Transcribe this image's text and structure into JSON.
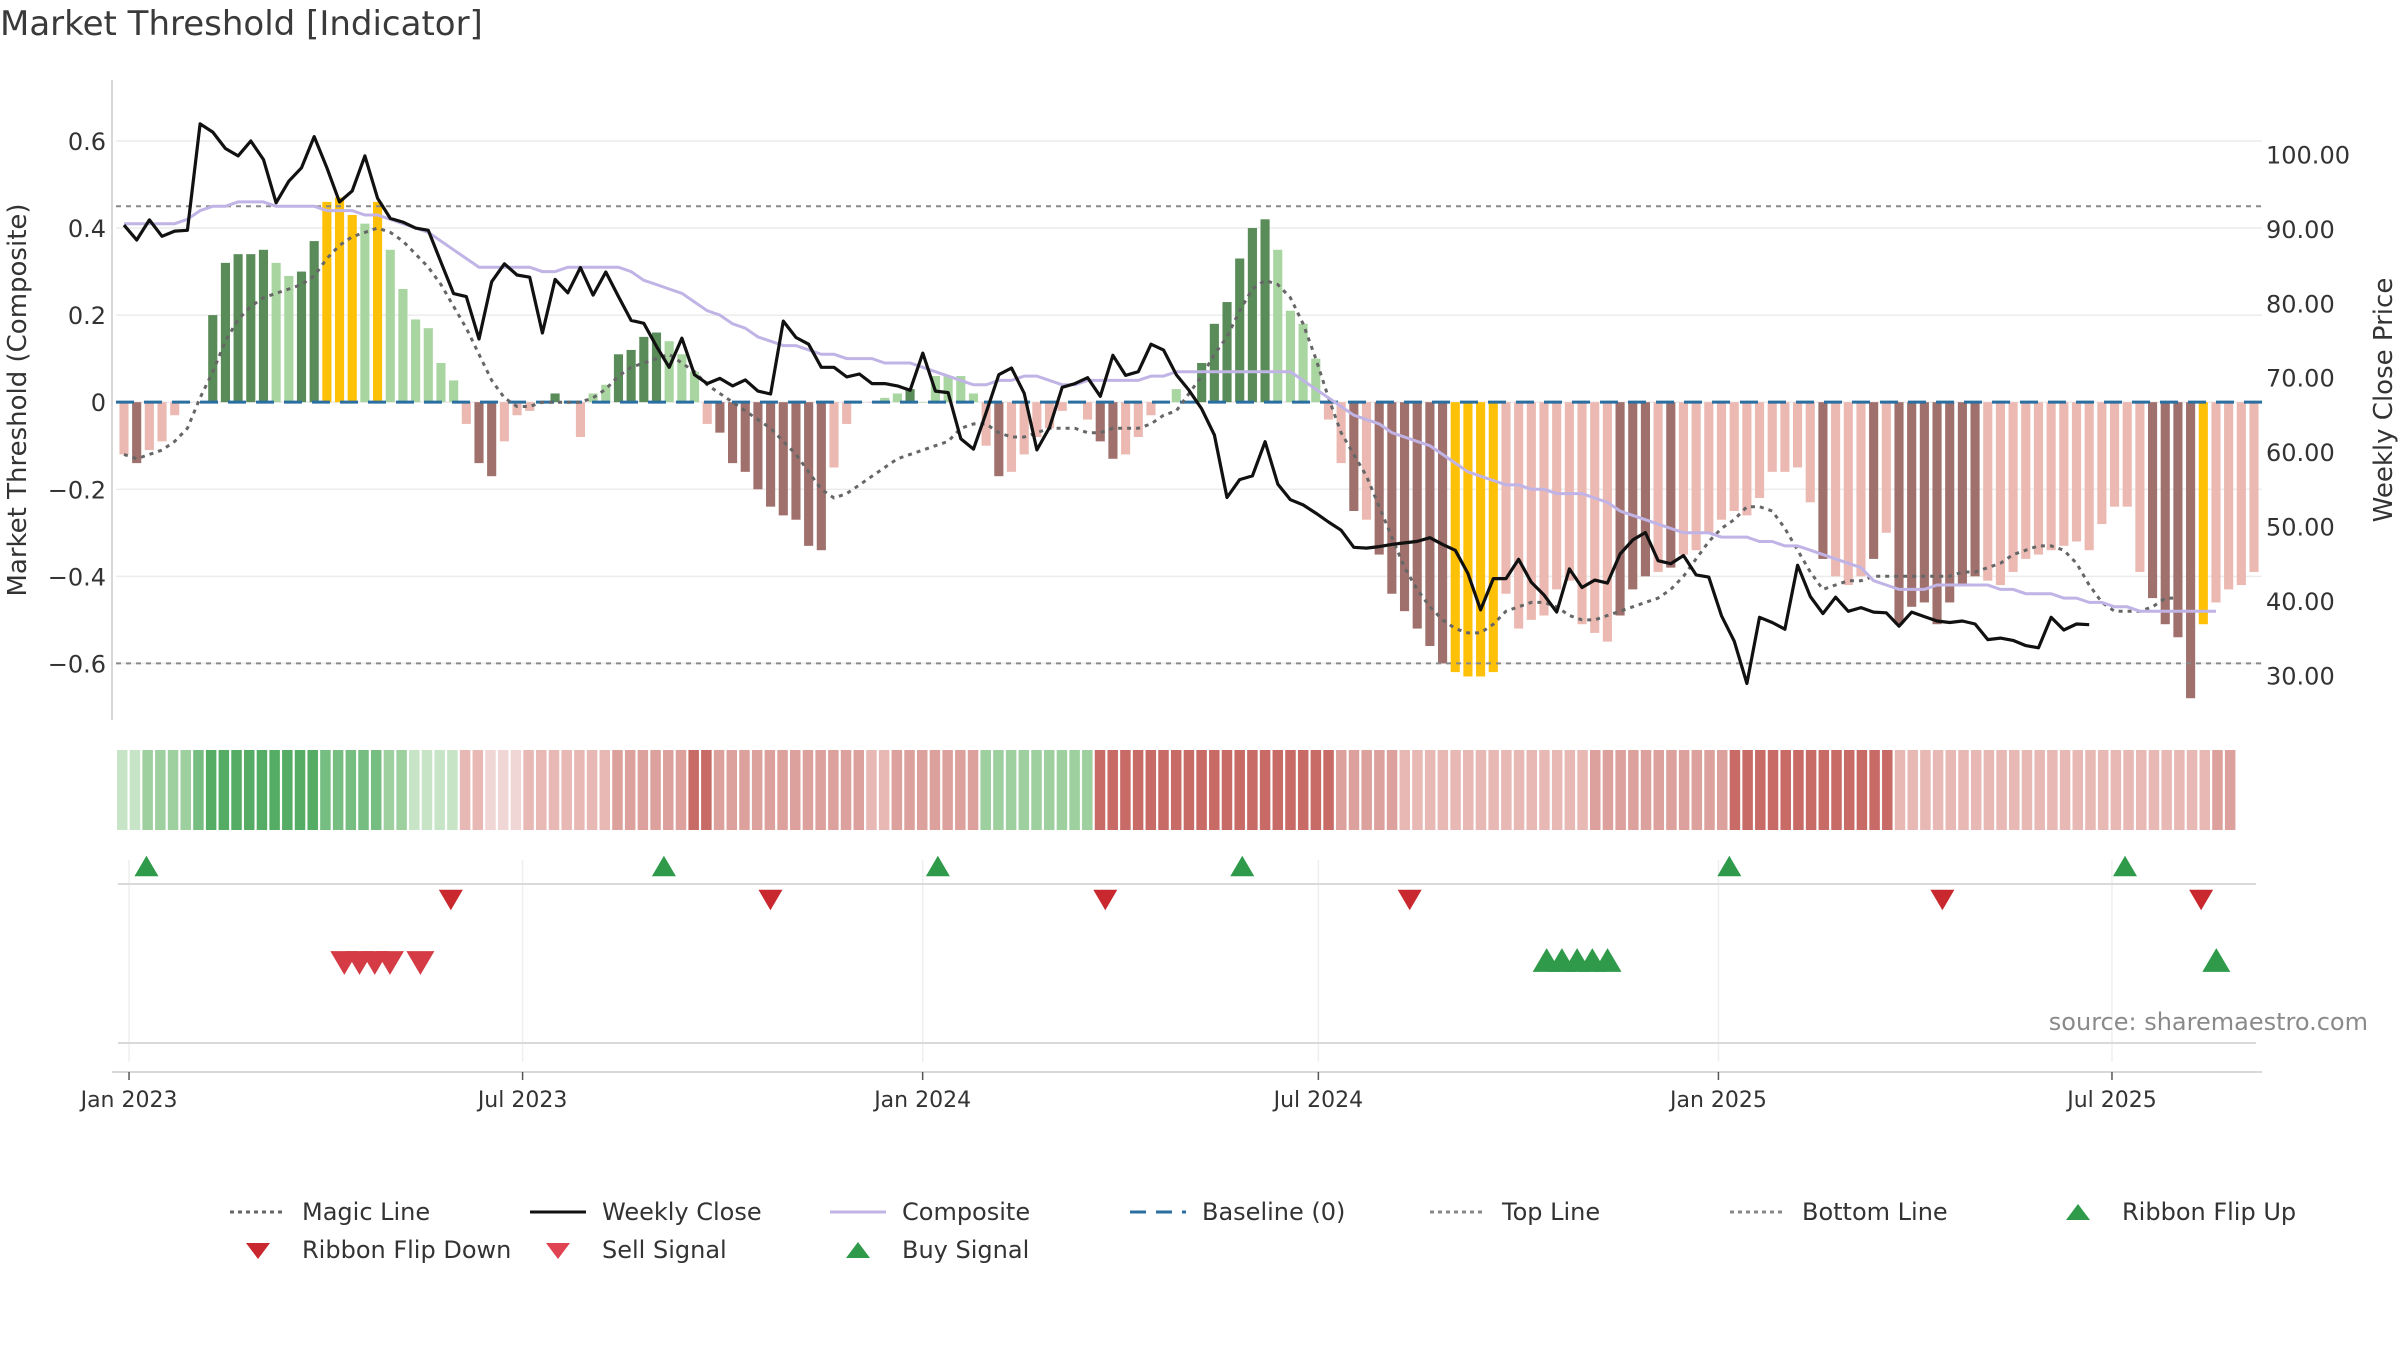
{
  "title": "Market Threshold [Indicator]",
  "source": "source: sharemaestro.com",
  "colors": {
    "dark_green": "#5a8c5a",
    "light_green": "#a8d5a0",
    "dark_red": "#a0706c",
    "light_red": "#ebb9b2",
    "yellow": "#ffc107",
    "close": "#111111",
    "composite": "#c0b4e6",
    "magic": "#666666",
    "baseline": "#2a6fa0",
    "buy": "#2e9a4a",
    "sell": "#d43b44"
  },
  "legend": [
    {
      "label": "Magic Line",
      "kind": "dotted",
      "color": "#666666"
    },
    {
      "label": "Weekly Close",
      "kind": "solid",
      "color": "#111111"
    },
    {
      "label": "Composite",
      "kind": "solid",
      "color": "#c0b4e6"
    },
    {
      "label": "Baseline (0)",
      "kind": "dashed",
      "color": "#2a6fa0"
    },
    {
      "label": "Top Line",
      "kind": "dotted",
      "color": "#888888"
    },
    {
      "label": "Bottom Line",
      "kind": "dotted",
      "color": "#888888"
    },
    {
      "label": "Ribbon Flip Up",
      "kind": "tri-up",
      "color": "#2e9a4a"
    },
    {
      "label": "Ribbon Flip Down",
      "kind": "tri-down",
      "color": "#c8282e"
    },
    {
      "label": "Sell Signal",
      "kind": "tri-down",
      "color": "#e04452"
    },
    {
      "label": "Buy Signal",
      "kind": "tri-up",
      "color": "#2e9a4a"
    }
  ],
  "chart_data": {
    "type": "bar",
    "title": "Market Threshold [Indicator]",
    "ylabel": "Market Threshold (Composite)",
    "y2label": "Weekly Close Price",
    "ylim": [
      -0.73,
      0.74
    ],
    "y2lim": [
      24,
      110
    ],
    "yticks": [
      0.6,
      0.4,
      0.2,
      0,
      -0.2,
      -0.4,
      -0.6
    ],
    "ytick_labels": [
      "0.6",
      "0.4",
      "0.2",
      "0",
      "−0.2",
      "−0.4",
      "−0.6"
    ],
    "y2ticks": [
      100,
      90,
      80,
      70,
      60,
      50,
      40,
      30
    ],
    "y2tick_labels": [
      "100.00",
      "90.00",
      "80.00",
      "70.00",
      "60.00",
      "50.00",
      "40.00",
      "30.00"
    ],
    "x_start": "2022-12-26",
    "x_end": "2025-09-08",
    "xticks": [
      "2023-01-01",
      "2023-07-01",
      "2024-01-01",
      "2024-07-01",
      "2025-01-01",
      "2025-07-01"
    ],
    "xtick_labels": [
      "Jan 2023",
      "Jul 2023",
      "Jan 2024",
      "Jul 2024",
      "Jan 2025",
      "Jul 2025"
    ],
    "top_line": 0.45,
    "bottom_line": -0.6,
    "baseline": 0,
    "bars": [
      -0.12,
      -0.14,
      -0.11,
      -0.09,
      -0.03,
      0.0,
      0.0,
      0.2,
      0.32,
      0.34,
      0.34,
      0.35,
      0.32,
      0.29,
      0.3,
      0.37,
      0.46,
      0.47,
      0.43,
      0.41,
      0.46,
      0.35,
      0.26,
      0.19,
      0.17,
      0.09,
      0.05,
      -0.05,
      -0.14,
      -0.17,
      -0.09,
      -0.03,
      -0.02,
      0.0,
      0.02,
      0.0,
      -0.08,
      0.02,
      0.04,
      0.11,
      0.12,
      0.15,
      0.16,
      0.14,
      0.11,
      0.07,
      -0.05,
      -0.07,
      -0.14,
      -0.16,
      -0.2,
      -0.24,
      -0.26,
      -0.27,
      -0.33,
      -0.34,
      -0.15,
      -0.05,
      0.0,
      0.0,
      0.01,
      0.02,
      0.03,
      0.0,
      0.06,
      0.06,
      0.06,
      0.02,
      -0.1,
      -0.17,
      -0.16,
      -0.12,
      -0.08,
      -0.06,
      -0.02,
      0.0,
      -0.04,
      -0.09,
      -0.13,
      -0.12,
      -0.08,
      -0.03,
      0.0,
      0.03,
      0.0,
      0.09,
      0.18,
      0.23,
      0.33,
      0.4,
      0.42,
      0.35,
      0.21,
      0.18,
      0.1,
      -0.04,
      -0.14,
      -0.25,
      -0.27,
      -0.35,
      -0.44,
      -0.48,
      -0.52,
      -0.56,
      -0.6,
      -0.62,
      -0.63,
      -0.63,
      -0.62,
      -0.44,
      -0.52,
      -0.5,
      -0.49,
      -0.43,
      -0.41,
      -0.51,
      -0.53,
      -0.55,
      -0.49,
      -0.43,
      -0.4,
      -0.39,
      -0.38,
      -0.35,
      -0.34,
      -0.3,
      -0.27,
      -0.25,
      -0.26,
      -0.22,
      -0.16,
      -0.16,
      -0.15,
      -0.23,
      -0.36,
      -0.4,
      -0.42,
      -0.4,
      -0.36,
      -0.3,
      -0.51,
      -0.47,
      -0.46,
      -0.51,
      -0.46,
      -0.42,
      -0.4,
      -0.41,
      -0.42,
      -0.39,
      -0.36,
      -0.35,
      -0.34,
      -0.33,
      -0.32,
      -0.34,
      -0.28,
      -0.24,
      -0.24,
      -0.39,
      -0.45,
      -0.51,
      -0.54,
      -0.68,
      -0.51,
      -0.46,
      -0.43,
      -0.42,
      -0.39
    ],
    "bar_colors": [
      "lr",
      "dr",
      "lr",
      "lr",
      "lr",
      "lr",
      "lr",
      "dg",
      "dg",
      "dg",
      "dg",
      "dg",
      "lg",
      "lg",
      "dg",
      "dg",
      "y",
      "y",
      "y",
      "lg",
      "y",
      "lg",
      "lg",
      "lg",
      "lg",
      "lg",
      "lg",
      "lr",
      "dr",
      "dr",
      "lr",
      "lr",
      "lr",
      "lr",
      "dg",
      "lg",
      "lr",
      "lg",
      "lg",
      "dg",
      "dg",
      "dg",
      "dg",
      "lg",
      "lg",
      "lg",
      "lr",
      "dr",
      "dr",
      "dr",
      "dr",
      "dr",
      "dr",
      "dr",
      "dr",
      "dr",
      "lr",
      "lr",
      "lr",
      "lr",
      "lg",
      "lg",
      "dg",
      "lg",
      "lg",
      "lg",
      "lg",
      "lg",
      "lr",
      "dr",
      "lr",
      "lr",
      "lr",
      "lr",
      "lr",
      "lr",
      "lr",
      "dr",
      "dr",
      "lr",
      "lr",
      "lr",
      "lr",
      "lg",
      "lg",
      "dg",
      "dg",
      "dg",
      "dg",
      "dg",
      "dg",
      "lg",
      "lg",
      "lg",
      "lg",
      "lr",
      "lr",
      "dr",
      "lr",
      "dr",
      "dr",
      "dr",
      "dr",
      "dr",
      "dr",
      "y",
      "y",
      "y",
      "y",
      "lr",
      "lr",
      "lr",
      "lr",
      "lr",
      "lr",
      "lr",
      "lr",
      "lr",
      "dr",
      "dr",
      "dr",
      "lr",
      "dr",
      "lr",
      "lr",
      "lr",
      "lr",
      "lr",
      "lr",
      "lr",
      "lr",
      "lr",
      "lr",
      "lr",
      "dr",
      "lr",
      "lr",
      "lr",
      "dr",
      "lr",
      "dr",
      "dr",
      "dr",
      "dr",
      "dr",
      "dr",
      "dr",
      "lr",
      "lr",
      "lr",
      "lr",
      "lr",
      "lr",
      "lr",
      "lr",
      "lr",
      "lr",
      "lr",
      "lr",
      "lr",
      "dr",
      "dr",
      "dr",
      "dr",
      "y",
      "lr",
      "lr",
      "lr",
      "lr",
      "lr"
    ],
    "series": [
      {
        "name": "Weekly Close",
        "axis": "right",
        "values": [
          90.5,
          88.5,
          91.2,
          89,
          89.7,
          89.8,
          104.1,
          103,
          100.8,
          99.8,
          101.8,
          99.3,
          93.5,
          96.4,
          98.2,
          102.4,
          98.2,
          93.6,
          95.1,
          99.8,
          94.1,
          91.4,
          90.9,
          90.1,
          89.8,
          85.5,
          81.3,
          80.9,
          75.2,
          82.9,
          85.3,
          83.8,
          83.5,
          76,
          83.2,
          81.4,
          84.8,
          81.1,
          84.2,
          80.9,
          77.7,
          77.3,
          74.2,
          71.4,
          75.3,
          70.4,
          69.2,
          69.9,
          68.9,
          69.7,
          68.2,
          67.8,
          77.6,
          75.4,
          74.5,
          71.4,
          71.4,
          70.1,
          70.5,
          69.2,
          69.2,
          68.9,
          68.3,
          73.3,
          68.2,
          68,
          61.8,
          60.4,
          65.3,
          70.4,
          71.3,
          67.9,
          60.3,
          63.3,
          68.7,
          69.2,
          70,
          67.5,
          73,
          70.3,
          70.8,
          74.5,
          73.7,
          70.4,
          68.3,
          65.8,
          62.3,
          53.9,
          56.3,
          56.8,
          61.4,
          55.7,
          53.6,
          52.9,
          51.8,
          50.6,
          49.5,
          47.2,
          47.1,
          47.3,
          47.6,
          47.8,
          48,
          48.5,
          47.6,
          46.8,
          43.7,
          38.8,
          43,
          43,
          45.6,
          42.5,
          40.8,
          38.5,
          44.3,
          41.8,
          42.8,
          42.4,
          46.3,
          48.2,
          49.2,
          45.4,
          45,
          46.1,
          43.5,
          43.2,
          38,
          34.6,
          28.9,
          37.8,
          37.1,
          36.2,
          44.8,
          40.6,
          38.3,
          40.5,
          38.6,
          39.1,
          38.5,
          38.4,
          36.6,
          38.5,
          37.9,
          37.3,
          37.1,
          37.3,
          36.9,
          34.8,
          35,
          34.7,
          34,
          33.7,
          37.8,
          36.1,
          36.9,
          36.8
        ]
      },
      {
        "name": "Composite",
        "axis": "left",
        "values": [
          0.41,
          0.41,
          0.41,
          0.41,
          0.41,
          0.42,
          0.44,
          0.45,
          0.45,
          0.46,
          0.46,
          0.46,
          0.45,
          0.45,
          0.45,
          0.45,
          0.44,
          0.44,
          0.44,
          0.43,
          0.43,
          0.42,
          0.41,
          0.4,
          0.39,
          0.37,
          0.35,
          0.33,
          0.31,
          0.31,
          0.31,
          0.31,
          0.31,
          0.3,
          0.3,
          0.31,
          0.31,
          0.31,
          0.31,
          0.31,
          0.3,
          0.28,
          0.27,
          0.26,
          0.25,
          0.23,
          0.21,
          0.2,
          0.18,
          0.17,
          0.15,
          0.14,
          0.13,
          0.13,
          0.12,
          0.11,
          0.11,
          0.1,
          0.1,
          0.1,
          0.09,
          0.09,
          0.09,
          0.08,
          0.07,
          0.06,
          0.05,
          0.04,
          0.04,
          0.05,
          0.05,
          0.06,
          0.06,
          0.05,
          0.04,
          0.04,
          0.05,
          0.05,
          0.05,
          0.05,
          0.05,
          0.06,
          0.06,
          0.07,
          0.07,
          0.07,
          0.07,
          0.07,
          0.07,
          0.07,
          0.07,
          0.07,
          0.07,
          0.05,
          0.03,
          0.01,
          -0.01,
          -0.03,
          -0.04,
          -0.05,
          -0.07,
          -0.08,
          -0.09,
          -0.1,
          -0.12,
          -0.14,
          -0.16,
          -0.17,
          -0.18,
          -0.19,
          -0.19,
          -0.2,
          -0.2,
          -0.21,
          -0.21,
          -0.21,
          -0.22,
          -0.23,
          -0.25,
          -0.26,
          -0.27,
          -0.28,
          -0.29,
          -0.3,
          -0.3,
          -0.3,
          -0.31,
          -0.31,
          -0.31,
          -0.32,
          -0.32,
          -0.33,
          -0.33,
          -0.34,
          -0.35,
          -0.36,
          -0.37,
          -0.38,
          -0.41,
          -0.42,
          -0.43,
          -0.43,
          -0.43,
          -0.42,
          -0.42,
          -0.42,
          -0.42,
          -0.42,
          -0.43,
          -0.43,
          -0.44,
          -0.44,
          -0.44,
          -0.45,
          -0.45,
          -0.46,
          -0.46,
          -0.47,
          -0.47,
          -0.48,
          -0.48,
          -0.48,
          -0.48,
          -0.48,
          -0.48,
          -0.48
        ]
      },
      {
        "name": "Magic Line",
        "axis": "left",
        "values": [
          -0.12,
          -0.13,
          -0.12,
          -0.11,
          -0.09,
          -0.06,
          0.01,
          0.07,
          0.14,
          0.19,
          0.22,
          0.24,
          0.25,
          0.26,
          0.27,
          0.29,
          0.33,
          0.36,
          0.38,
          0.39,
          0.4,
          0.39,
          0.37,
          0.34,
          0.31,
          0.27,
          0.22,
          0.17,
          0.11,
          0.05,
          0.01,
          -0.01,
          -0.01,
          0.0,
          0.0,
          0.0,
          0.0,
          0.01,
          0.03,
          0.06,
          0.08,
          0.09,
          0.1,
          0.11,
          0.09,
          0.07,
          0.04,
          0.02,
          0.0,
          -0.02,
          -0.04,
          -0.06,
          -0.09,
          -0.12,
          -0.16,
          -0.2,
          -0.22,
          -0.21,
          -0.19,
          -0.17,
          -0.15,
          -0.13,
          -0.12,
          -0.11,
          -0.1,
          -0.09,
          -0.06,
          -0.05,
          -0.05,
          -0.07,
          -0.08,
          -0.08,
          -0.07,
          -0.06,
          -0.06,
          -0.06,
          -0.07,
          -0.07,
          -0.06,
          -0.06,
          -0.06,
          -0.05,
          -0.03,
          -0.02,
          0.02,
          0.06,
          0.11,
          0.15,
          0.21,
          0.26,
          0.28,
          0.27,
          0.24,
          0.18,
          0.1,
          0.01,
          -0.07,
          -0.12,
          -0.17,
          -0.24,
          -0.31,
          -0.38,
          -0.43,
          -0.47,
          -0.5,
          -0.52,
          -0.53,
          -0.53,
          -0.51,
          -0.48,
          -0.47,
          -0.46,
          -0.46,
          -0.47,
          -0.49,
          -0.5,
          -0.5,
          -0.49,
          -0.48,
          -0.47,
          -0.46,
          -0.45,
          -0.43,
          -0.4,
          -0.36,
          -0.32,
          -0.29,
          -0.27,
          -0.24,
          -0.24,
          -0.25,
          -0.29,
          -0.34,
          -0.39,
          -0.43,
          -0.42,
          -0.41,
          -0.41,
          -0.4,
          -0.4,
          -0.4,
          -0.4,
          -0.4,
          -0.4,
          -0.4,
          -0.39,
          -0.39,
          -0.38,
          -0.37,
          -0.35,
          -0.34,
          -0.33,
          -0.33,
          -0.34,
          -0.37,
          -0.42,
          -0.46,
          -0.48,
          -0.48,
          -0.48,
          -0.47,
          -0.45,
          -0.45
        ]
      }
    ],
    "ribbon": [
      3,
      3,
      2,
      2,
      2,
      2,
      1,
      0,
      0,
      0,
      0,
      0,
      0,
      0,
      0,
      0,
      1,
      1,
      1,
      1,
      1,
      2,
      2,
      3,
      3,
      3,
      3,
      5,
      5,
      4,
      4,
      4,
      5,
      5,
      5,
      5,
      5,
      5,
      5,
      6,
      6,
      6,
      6,
      6,
      6,
      7,
      7,
      6,
      6,
      6,
      6,
      6,
      6,
      6,
      6,
      6,
      6,
      6,
      6,
      5,
      5,
      6,
      6,
      6,
      6,
      6,
      6,
      6,
      2,
      2,
      2,
      2,
      2,
      2,
      2,
      2,
      2,
      7,
      7,
      7,
      7,
      7,
      7,
      7,
      7,
      7,
      7,
      7,
      7,
      7,
      7,
      7,
      7,
      7,
      7,
      7,
      6,
      6,
      6,
      6,
      6,
      5,
      5,
      5,
      5,
      5,
      5,
      5,
      5,
      5,
      5,
      5,
      5,
      5,
      5,
      5,
      6,
      6,
      6,
      6,
      6,
      6,
      6,
      6,
      6,
      6,
      6,
      7,
      7,
      7,
      7,
      7,
      7,
      7,
      7,
      7,
      7,
      7,
      7,
      7,
      5,
      5,
      5,
      5,
      5,
      5,
      5,
      5,
      5,
      5,
      5,
      5,
      5,
      5,
      5,
      5,
      5,
      5,
      5,
      5,
      5,
      5,
      5,
      5,
      5,
      6,
      6
    ],
    "ribbon_flip_up": [
      "2023-01-09",
      "2023-09-04",
      "2024-01-08",
      "2024-05-27",
      "2025-01-06",
      "2025-07-07"
    ],
    "ribbon_flip_down": [
      "2023-05-29",
      "2023-10-23",
      "2024-03-25",
      "2024-08-12",
      "2025-04-14",
      "2025-08-11"
    ],
    "sell_signals": [
      "2023-04-10",
      "2023-04-17",
      "2023-04-24",
      "2023-05-01",
      "2023-05-15"
    ],
    "buy_signals": [
      "2024-10-14",
      "2024-10-21",
      "2024-10-28",
      "2024-11-04",
      "2024-11-11",
      "2025-08-18"
    ]
  }
}
